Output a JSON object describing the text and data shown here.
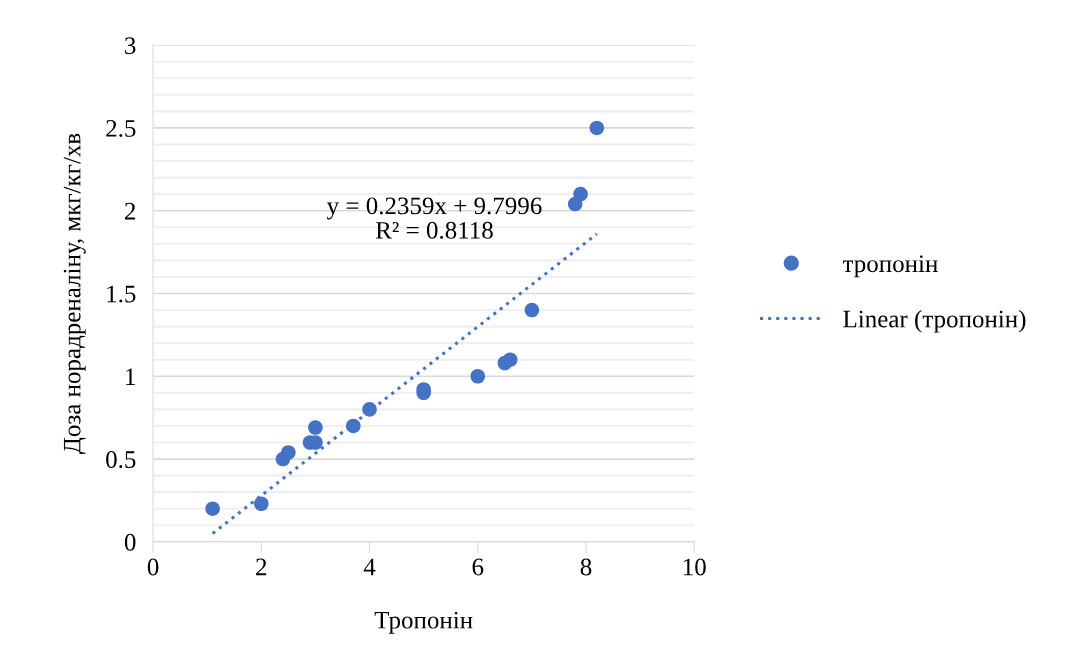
{
  "chart_data": {
    "type": "scatter",
    "xlabel": "Тропонін",
    "ylabel": "Доза норадреналіну, мкг/кг/хв",
    "xlim": [
      0,
      10
    ],
    "xticks": [
      0,
      2,
      4,
      6,
      8,
      10
    ],
    "ylim": [
      0,
      3
    ],
    "yticks": [
      0,
      {
        "value": 0.1,
        "label": null
      },
      {
        "value": 0.2,
        "label": null
      },
      {
        "value": 0.3,
        "label": null
      },
      {
        "value": 0.4,
        "label": null
      },
      0.5,
      {
        "value": 0.6,
        "label": null
      },
      {
        "value": 0.7,
        "label": null
      },
      {
        "value": 0.8,
        "label": null
      },
      {
        "value": 0.9,
        "label": null
      },
      1,
      {
        "value": 1.1,
        "label": null
      },
      {
        "value": 1.2,
        "label": null
      },
      {
        "value": 1.3,
        "label": null
      },
      {
        "value": 1.4,
        "label": null
      },
      1.5,
      {
        "value": 1.6,
        "label": null
      },
      {
        "value": 1.7,
        "label": null
      },
      {
        "value": 1.8,
        "label": null
      },
      {
        "value": 1.9,
        "label": null
      },
      2,
      {
        "value": 2.1,
        "label": null
      },
      {
        "value": 2.2,
        "label": null
      },
      {
        "value": 2.3,
        "label": null
      },
      {
        "value": 2.4,
        "label": null
      },
      2.5,
      {
        "value": 2.6,
        "label": null
      },
      {
        "value": 2.7,
        "label": null
      },
      {
        "value": 2.8,
        "label": null
      },
      {
        "value": 2.9,
        "label": null
      },
      3
    ],
    "grid": "y",
    "legend": "right",
    "series": [
      {
        "name": "тропонін",
        "color": "#4472c4",
        "marker": "circle",
        "x": [
          1.1,
          2,
          2.4,
          2.5,
          2.9,
          3,
          3,
          3.7,
          4,
          5,
          5,
          6,
          6.5,
          6.6,
          7,
          7.8,
          7.9,
          8.2
        ],
        "values": [
          0.2,
          0.23,
          0.5,
          0.54,
          0.6,
          0.6,
          0.69,
          0.7,
          0.8,
          0.92,
          0.9,
          1.0,
          1.08,
          1.1,
          1.4,
          2.04,
          2.1,
          2.5
        ]
      },
      {
        "name": "Linear (тропонін)",
        "type": "line",
        "color": "#4472c4",
        "line_style": "dotted",
        "x": [
          1.1,
          8.2
        ],
        "values": [
          0.05,
          1.86
        ]
      }
    ],
    "annotations": [
      "y = 0.2359x + 9.7996\nR² = 0.8118"
    ]
  }
}
